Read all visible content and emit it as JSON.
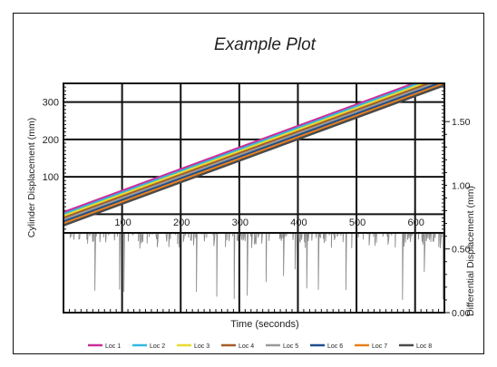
{
  "chart_data": {
    "type": "line",
    "title": "Example Plot",
    "xlabel": "Time (seconds)",
    "ylabel_left": "Cylinder Displacement (mm)",
    "ylabel_right": "Differential Displacement (mm)",
    "x_ticks": [
      "100",
      "200",
      "300",
      "400",
      "500",
      "600"
    ],
    "y_left_ticks": [
      "100",
      "200",
      "300"
    ],
    "y_right_ticks": [
      "0.00",
      "0.50",
      "1.00",
      "1.50"
    ],
    "xlim": [
      0,
      650
    ],
    "y_left_lim": [
      -50,
      350
    ],
    "y_right_lim": [
      0,
      1.8
    ],
    "grid": true,
    "legend_position": "bottom",
    "top_panel": {
      "series": [
        {
          "name": "Loc 1",
          "color": "#cc2e9a",
          "x": [
            0,
            650
          ],
          "y": [
            5,
            380
          ]
        },
        {
          "name": "Loc 2",
          "color": "#33b8e0",
          "x": [
            0,
            650
          ],
          "y": [
            0,
            375
          ]
        },
        {
          "name": "Loc 3",
          "color": "#eadb2e",
          "x": [
            0,
            650
          ],
          "y": [
            -5,
            370
          ]
        },
        {
          "name": "Loc 4",
          "color": "#a45d26",
          "x": [
            0,
            650
          ],
          "y": [
            -10,
            365
          ]
        },
        {
          "name": "Loc 5",
          "color": "#9a9a9a",
          "x": [
            0,
            650
          ],
          "y": [
            -15,
            360
          ]
        },
        {
          "name": "Loc 6",
          "color": "#1e4e8c",
          "x": [
            0,
            650
          ],
          "y": [
            -20,
            355
          ]
        },
        {
          "name": "Loc 7",
          "color": "#e8801e",
          "x": [
            0,
            650
          ],
          "y": [
            -25,
            350
          ]
        },
        {
          "name": "Loc 8",
          "color": "#4a4a4a",
          "x": [
            0,
            650
          ],
          "y": [
            -30,
            345
          ]
        }
      ]
    },
    "bottom_panel": {
      "series_name": "Loc 5",
      "color": "#8c8c8c",
      "baseline": 0.65,
      "typical_range": [
        0.5,
        0.95
      ],
      "min": 0.1,
      "max": 1.0
    }
  }
}
